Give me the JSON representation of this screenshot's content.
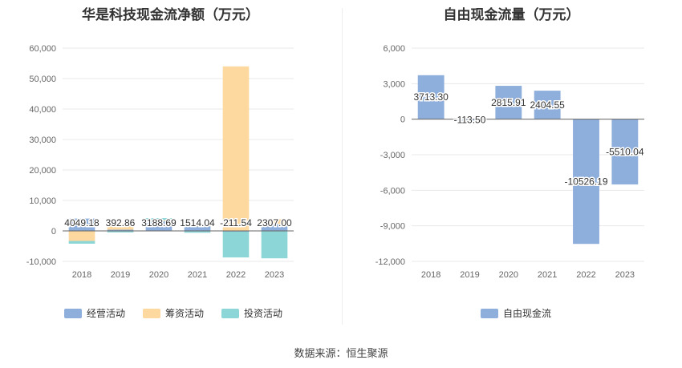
{
  "source": "数据来源：恒生聚源",
  "chart_data": [
    {
      "type": "bar",
      "stacked": true,
      "title": "华是科技现金流净额（万元）",
      "categories": [
        "2018",
        "2019",
        "2020",
        "2021",
        "2022",
        "2023"
      ],
      "ylim": [
        -10000,
        60000
      ],
      "yticks": [
        -10000,
        0,
        10000,
        20000,
        30000,
        40000,
        50000,
        60000
      ],
      "ytick_labels": [
        "-10,000",
        "0",
        "10,000",
        "20,000",
        "30,000",
        "40,000",
        "50,000",
        "60,000"
      ],
      "series": [
        {
          "name": "经营活动",
          "color": "#8eaedc",
          "values": [
            4049.18,
            392.86,
            3188.69,
            1514.04,
            -211.54,
            2307.0
          ]
        },
        {
          "name": "筹资活动",
          "color": "#fdd89f",
          "values": [
            -3300,
            2000,
            300,
            800,
            54000,
            1500
          ]
        },
        {
          "name": "投资活动",
          "color": "#8dd6d8",
          "values": [
            -900,
            -500,
            700,
            -600,
            -8500,
            -9000
          ]
        }
      ],
      "data_labels": [
        "4049.18",
        "392.86",
        "3188.69",
        "1514.04",
        "-211.54",
        "2307.00"
      ],
      "grid": true,
      "legend": "bottom"
    },
    {
      "type": "bar",
      "title": "自由现金流量（万元）",
      "categories": [
        "2018",
        "2019",
        "2020",
        "2021",
        "2022",
        "2023"
      ],
      "ylim": [
        -12000,
        6000
      ],
      "yticks": [
        -12000,
        -9000,
        -6000,
        -3000,
        0,
        3000,
        6000
      ],
      "ytick_labels": [
        "-12,000",
        "-9,000",
        "-6,000",
        "-3,000",
        "0",
        "3,000",
        "6,000"
      ],
      "series": [
        {
          "name": "自由现金流",
          "color": "#8eaedc",
          "values": [
            3713.3,
            -113.5,
            2815.91,
            2404.55,
            -10526.19,
            -5510.04
          ]
        }
      ],
      "data_labels": [
        "3713.30",
        "-113.50",
        "2815.91",
        "2404.55",
        "-10526.19",
        "-5510.04"
      ],
      "grid": true,
      "legend": "bottom"
    }
  ]
}
